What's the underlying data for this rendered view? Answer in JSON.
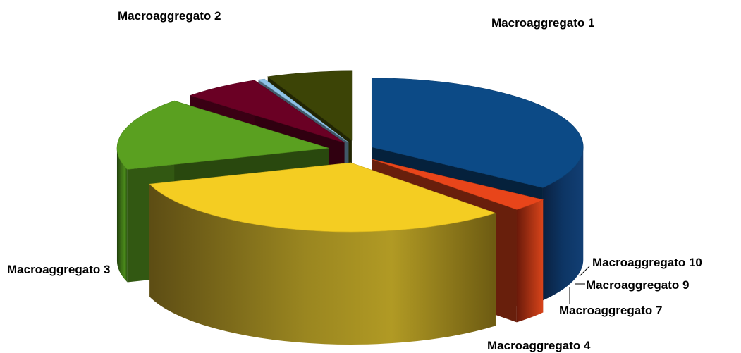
{
  "chart_data": {
    "type": "pie",
    "title": "",
    "categories": [
      "Macroaggregato 1",
      "Macroaggregato 2",
      "Macroaggregato 3",
      "Macroaggregato 4",
      "Macroaggregato 7",
      "Macroaggregato 9",
      "Macroaggregato 10"
    ],
    "values": [
      35.0,
      3.0,
      32.0,
      17.0,
      6.0,
      0.5,
      6.5
    ],
    "colors": [
      "#0c4a86",
      "#e8451a",
      "#f4cd22",
      "#5aa020",
      "#6a0024",
      "#8fc3e8",
      "#3c4406"
    ],
    "exploded": true,
    "three_d": true,
    "legend": "none"
  }
}
